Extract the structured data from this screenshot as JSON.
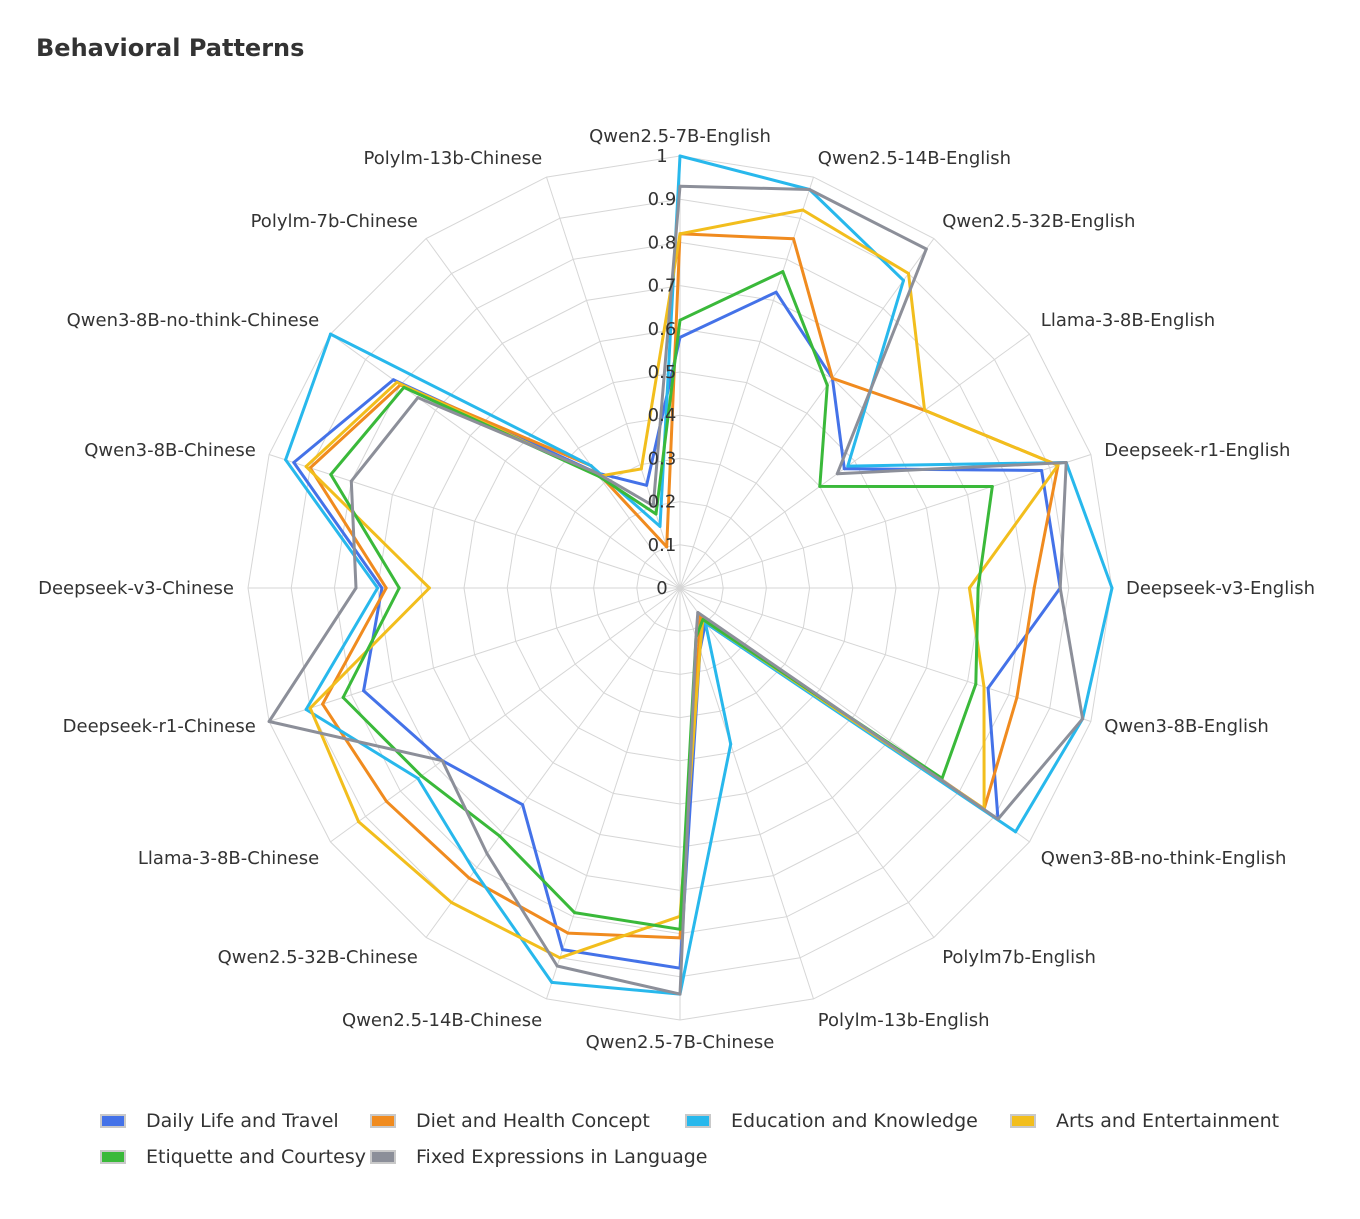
{
  "chart_data": {
    "type": "radar",
    "title": "Behavioral Patterns",
    "radial_range": [
      0,
      1
    ],
    "radial_ticks": [
      "0",
      "0.1",
      "0.2",
      "0.3",
      "0.4",
      "0.5",
      "0.6",
      "0.7",
      "0.8",
      "0.9",
      "1"
    ],
    "grid": true,
    "legend_position": "bottom",
    "categories": [
      "Qwen2.5-7B-English",
      "Qwen2.5-14B-English",
      "Qwen2.5-32B-English",
      "Llama-3-8B-English",
      "Deepseek-r1-English",
      "Deepseek-v3-English",
      "Qwen3-8B-English",
      "Qwen3-8B-no-think-English",
      "Polylm7b-English",
      "Polylm-13b-English",
      "Qwen2.5-7B-Chinese",
      "Qwen2.5-14B-Chinese",
      "Qwen2.5-32B-Chinese",
      "Llama-3-8B-Chinese",
      "Deepseek-r1-Chinese",
      "Deepseek-v3-Chinese",
      "Qwen3-8B-Chinese",
      "Qwen3-8B-no-think-Chinese",
      "Polylm-7b-Chinese",
      "Polylm-13b-Chinese"
    ],
    "series": [
      {
        "name": "Daily Life and Travel",
        "color": "#4472e8",
        "values": [
          0.58,
          0.72,
          0.6,
          0.47,
          0.88,
          0.88,
          0.75,
          0.91,
          0.1,
          0.15,
          0.88,
          0.88,
          0.62,
          0.68,
          0.77,
          0.69,
          0.94,
          0.82,
          0.33,
          0.25
        ]
      },
      {
        "name": "Diet and Health Concept",
        "color": "#f08b1f",
        "values": [
          0.82,
          0.85,
          0.6,
          0.7,
          0.92,
          0.82,
          0.82,
          0.87,
          0.08,
          0.14,
          0.81,
          0.84,
          0.83,
          0.84,
          0.87,
          0.68,
          0.9,
          0.8,
          0.35,
          0.1
        ]
      },
      {
        "name": "Education and Knowledge",
        "color": "#28b8ec",
        "values": [
          1.0,
          0.97,
          0.88,
          0.48,
          0.94,
          1.0,
          0.98,
          0.96,
          0.1,
          0.38,
          0.94,
          0.96,
          0.81,
          0.75,
          0.91,
          0.7,
          0.96,
          1.0,
          0.35,
          0.15
        ]
      },
      {
        "name": "Arts and Entertainment",
        "color": "#f2be1d",
        "values": [
          0.82,
          0.92,
          0.9,
          0.7,
          0.92,
          0.67,
          0.74,
          0.87,
          0.09,
          0.15,
          0.76,
          0.9,
          0.9,
          0.92,
          0.9,
          0.58,
          0.91,
          0.81,
          0.32,
          0.29
        ]
      },
      {
        "name": "Etiquette and Courtesy",
        "color": "#3ab93a",
        "values": [
          0.62,
          0.77,
          0.58,
          0.4,
          0.76,
          0.69,
          0.72,
          0.75,
          0.09,
          0.12,
          0.79,
          0.79,
          0.71,
          0.74,
          0.82,
          0.65,
          0.85,
          0.79,
          0.32,
          0.18
        ]
      },
      {
        "name": "Fixed Expressions in Language",
        "color": "#8c8f99",
        "values": [
          0.93,
          0.97,
          0.97,
          0.45,
          0.94,
          0.88,
          0.98,
          0.91,
          0.07,
          0.12,
          0.94,
          0.92,
          0.76,
          0.68,
          1.0,
          0.75,
          0.8,
          0.75,
          0.33,
          0.2
        ]
      }
    ]
  }
}
